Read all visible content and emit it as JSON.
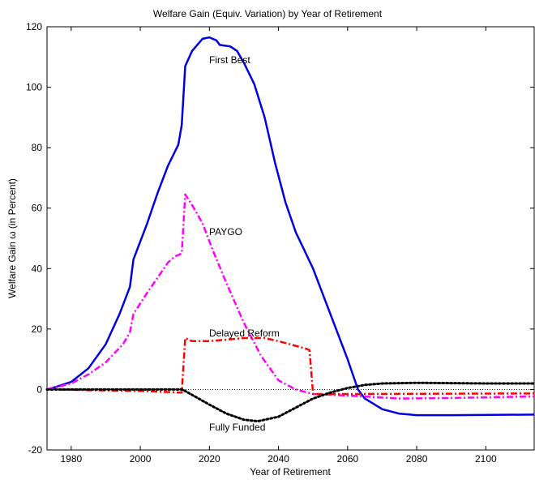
{
  "chart_data": {
    "type": "line",
    "title": "Welfare Gain (Equiv. Variation) by Year of Retirement",
    "x_label": "Year of Retirement",
    "y_label": "Welfare Gain  ω (in Percent)",
    "xlim": [
      1973,
      2114
    ],
    "ylim": [
      -20,
      120
    ],
    "xticks": [
      1980,
      2000,
      2020,
      2040,
      2060,
      2080,
      2100
    ],
    "yticks": [
      -20,
      0,
      20,
      40,
      60,
      80,
      100,
      120
    ],
    "zero_line": true,
    "series": [
      {
        "name": "First Best",
        "color": "#0000e0",
        "style": "solid",
        "x": [
          1973,
          1976,
          1980,
          1985,
          1990,
          1994,
          1997,
          1998,
          2002,
          2005,
          2008,
          2011,
          2012,
          2013,
          2015,
          2018,
          2020,
          2022,
          2023,
          2026,
          2028,
          2030,
          2033,
          2036,
          2039,
          2042,
          2045,
          2050,
          2055,
          2060,
          2063,
          2065,
          2070,
          2075,
          2080,
          2090,
          2114
        ],
        "values": [
          0,
          1,
          2.5,
          7,
          15,
          25,
          34,
          43,
          55,
          65,
          74,
          81,
          87.5,
          107,
          112,
          116,
          116.5,
          115.5,
          114,
          113.5,
          112,
          108,
          101,
          90,
          75,
          62,
          52,
          40,
          25,
          10,
          0,
          -3,
          -6.5,
          -8,
          -8.5,
          -8.5,
          -8.3
        ]
      },
      {
        "name": "PAYGO",
        "color": "#ff00ff",
        "style": "dashdot",
        "x": [
          1973,
          1980,
          1985,
          1990,
          1995,
          1997,
          1998,
          2002,
          2005,
          2008,
          2010,
          2012,
          2013,
          2015,
          2018,
          2021,
          2025,
          2030,
          2035,
          2040,
          2045,
          2050,
          2060,
          2075,
          2090,
          2114
        ],
        "values": [
          0,
          2,
          5,
          9,
          15,
          19,
          25,
          32,
          37,
          42,
          44,
          45,
          64.5,
          61,
          55,
          46,
          35,
          22,
          11,
          3,
          0,
          -1.5,
          -2,
          -3,
          -2.8,
          -2.3
        ]
      },
      {
        "name": "Delayed Reform",
        "color": "#ff0000",
        "style": "dashdot",
        "x": [
          1973,
          2000,
          2012,
          2013,
          2015,
          2020,
          2030,
          2036,
          2040,
          2048,
          2049,
          2050,
          2060,
          2114
        ],
        "values": [
          0,
          -0.5,
          -1,
          17,
          16,
          16,
          17,
          17,
          16,
          13.5,
          13,
          -1.5,
          -1.5,
          -1.3
        ]
      },
      {
        "name": "Fully Funded",
        "color": "#000000",
        "style": "dotted",
        "x": [
          1973,
          2000,
          2012,
          2013,
          2020,
          2025,
          2030,
          2034,
          2040,
          2045,
          2050,
          2055,
          2060,
          2065,
          2070,
          2080,
          2100,
          2114
        ],
        "values": [
          0,
          0,
          0,
          -0.5,
          -5,
          -8,
          -10,
          -10.5,
          -9,
          -6,
          -3,
          -1,
          0.5,
          1.5,
          2,
          2.2,
          2,
          2
        ]
      }
    ]
  }
}
